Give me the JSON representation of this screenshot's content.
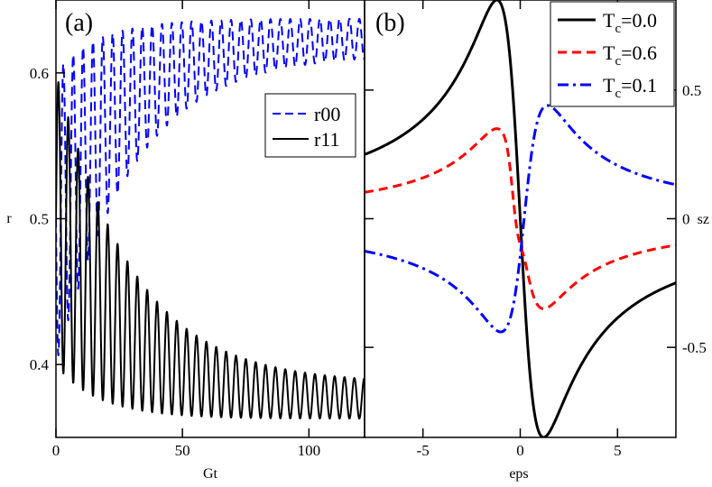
{
  "chart_data": [
    {
      "panel_label": "(a)",
      "type": "line",
      "xlabel": "Gt",
      "ylabel": "r",
      "xlim": [
        0,
        122
      ],
      "ylim": [
        0.35,
        0.65
      ],
      "x_ticks": [
        0,
        50,
        100
      ],
      "x_tick_labels": [
        "0",
        "50",
        "100"
      ],
      "y_ticks": [
        0.4,
        0.5,
        0.6
      ],
      "y_tick_labels": [
        "0.4",
        "0.5",
        "0.6"
      ],
      "legend_position": "center-right",
      "series": [
        {
          "name": "r00",
          "color": "#0000ff",
          "style": "dashed",
          "model": {
            "start": 0.5,
            "final": 0.625,
            "relax_tau": 28,
            "osc_amp": 0.1,
            "osc_decay": 30,
            "osc_period": 3.9,
            "phase": 3.14159
          }
        },
        {
          "name": "r11",
          "color": "#000000",
          "style": "solid",
          "model": {
            "start": 0.5,
            "final": 0.375,
            "relax_tau": 28,
            "osc_amp": 0.1,
            "osc_decay": 30,
            "osc_period": 3.9,
            "phase": 0
          }
        }
      ]
    },
    {
      "panel_label": "(b)",
      "type": "line",
      "xlabel": "eps",
      "ylabel": "sz",
      "xlim": [
        -8,
        8
      ],
      "ylim": [
        -0.85,
        0.85
      ],
      "x_ticks": [
        -5,
        0,
        5
      ],
      "x_tick_labels": [
        "-5",
        "0",
        "5"
      ],
      "y_ticks": [
        -0.5,
        0,
        0.5
      ],
      "y_tick_labels": [
        "-0.5",
        "0",
        "0.5"
      ],
      "legend_position": "top-right",
      "series": [
        {
          "name": "Tc=0.0",
          "legend_base": "T",
          "legend_sub": "c",
          "legend_value": "=0.0",
          "color": "#000000",
          "style": "solid",
          "model": {
            "amp": -0.85,
            "shift": 0,
            "gamma": 1.2
          }
        },
        {
          "name": "Tc=0.6",
          "legend_base": "T",
          "legend_sub": "c",
          "legend_value": "=0.6",
          "color": "#ff0000",
          "style": "dashed",
          "model": {
            "amp": -0.35,
            "shift": 0,
            "gamma": 1.2,
            "dip_amp": -0.14,
            "dip_shift": -0.2,
            "dip_width": 0.35
          }
        },
        {
          "name": "Tc=0.1",
          "legend_base": "T",
          "legend_sub": "c",
          "legend_value": "=0.1",
          "color": "#0000ff",
          "style": "dash-dot",
          "model": {
            "amp": 0.44,
            "shift": 0.2,
            "gamma": 1.2
          }
        }
      ]
    }
  ]
}
